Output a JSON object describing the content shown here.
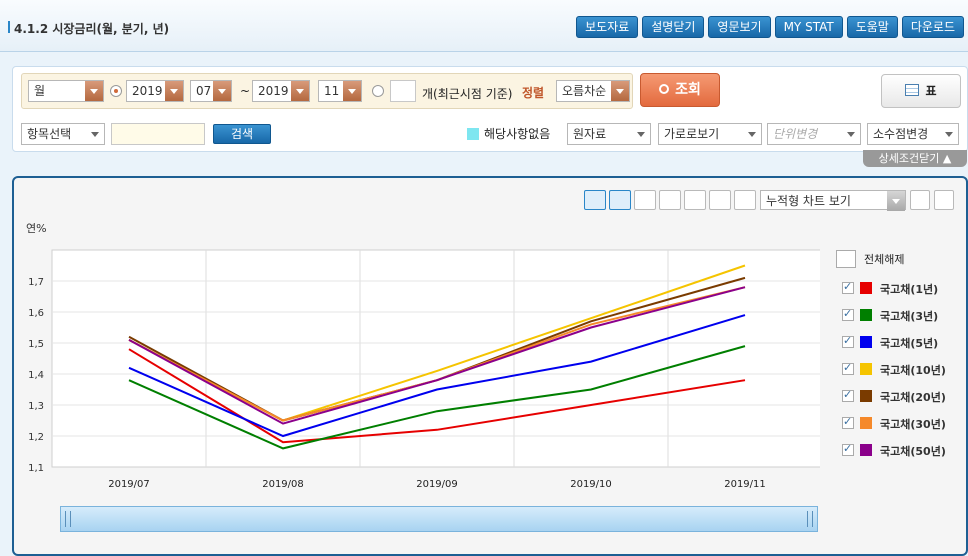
{
  "header": {
    "title": "4.1.2 시장금리(월, 분기, 년)",
    "buttons": [
      "보도자료",
      "설명닫기",
      "영문보기",
      "MY STAT",
      "도움말",
      "다운로드"
    ]
  },
  "filter": {
    "period": "월",
    "start_year": "2019",
    "start_month": "07",
    "tilde": "~",
    "end_year": "2019",
    "end_month": "11",
    "recent_count_label": "개(최근시점 기준)",
    "sort_label": "정렬",
    "sort_value": "오름차순",
    "query_label": "조회",
    "table_label": "표",
    "item_select": "항목선택",
    "search_label": "검색",
    "na_label": "해당사항없음",
    "data_type": "원자료",
    "view_mode": "가로로보기",
    "unit_change": "단위변경",
    "decimal_change": "소수점변경",
    "detail_close": "상세조건닫기"
  },
  "chart_toolbar": {
    "view_select": "누적형 차트 보기"
  },
  "legend_header": "전체해제",
  "chart_data": {
    "type": "line",
    "ylabel": "연%",
    "categories": [
      "2019/07",
      "2019/08",
      "2019/09",
      "2019/10",
      "2019/11"
    ],
    "ylim": [
      1.1,
      1.8
    ],
    "yticks": [
      "1,1",
      "1,2",
      "1,3",
      "1,4",
      "1,5",
      "1,6",
      "1,7"
    ],
    "grid": true,
    "legend_position": "right",
    "series": [
      {
        "name": "국고채(1년)",
        "color": "#e60000",
        "values": [
          1.48,
          1.18,
          1.22,
          1.3,
          1.38
        ]
      },
      {
        "name": "국고채(3년)",
        "color": "#007f00",
        "values": [
          1.38,
          1.16,
          1.28,
          1.35,
          1.49
        ]
      },
      {
        "name": "국고채(5년)",
        "color": "#0000ee",
        "values": [
          1.42,
          1.2,
          1.35,
          1.44,
          1.59
        ]
      },
      {
        "name": "국고채(10년)",
        "color": "#f5c400",
        "values": [
          1.51,
          1.25,
          1.41,
          1.58,
          1.75
        ]
      },
      {
        "name": "국고채(20년)",
        "color": "#7a3b00",
        "values": [
          1.52,
          1.25,
          1.38,
          1.57,
          1.71
        ]
      },
      {
        "name": "국고채(30년)",
        "color": "#f5892a",
        "values": [
          1.51,
          1.25,
          1.38,
          1.56,
          1.68
        ]
      },
      {
        "name": "국고채(50년)",
        "color": "#8b008b",
        "values": [
          1.51,
          1.24,
          1.38,
          1.55,
          1.68
        ]
      }
    ]
  }
}
